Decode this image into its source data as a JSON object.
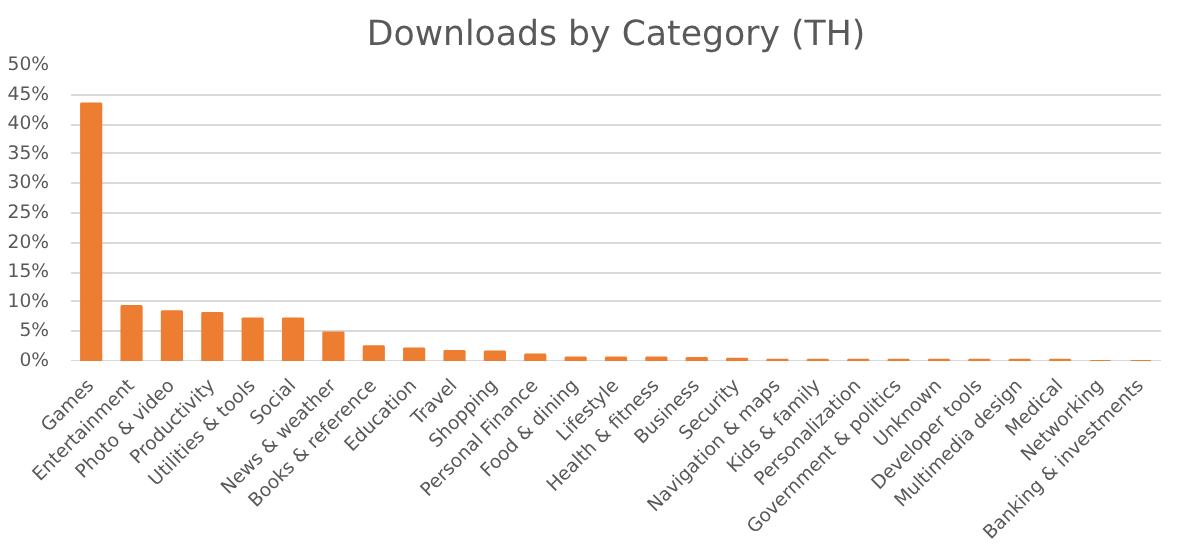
{
  "chart_data": {
    "type": "bar",
    "title": "Downloads by Category (TH)",
    "categories": [
      "Games",
      "Entertainment",
      "Photo & video",
      "Productivity",
      "Utilities & tools",
      "Social",
      "News & weather",
      "Books & reference",
      "Education",
      "Travel",
      "Shopping",
      "Personal Finance",
      "Food & dining",
      "Lifestyle",
      "Health & fitness",
      "Business",
      "Security",
      "Navigation & maps",
      "Kids & family",
      "Personalization",
      "Government & politics",
      "Unknown",
      "Developer tools",
      "Multimedia design",
      "Medical",
      "Networking",
      "Banking & investments"
    ],
    "values": [
      43.5,
      9.3,
      8.4,
      8.1,
      7.2,
      7.2,
      4.8,
      2.5,
      2.1,
      1.7,
      1.6,
      1.1,
      0.6,
      0.6,
      0.6,
      0.5,
      0.4,
      0.2,
      0.2,
      0.2,
      0.2,
      0.2,
      0.2,
      0.2,
      0.2,
      0,
      0
    ],
    "color": "#ed7d31",
    "ylim": [
      0,
      50
    ],
    "yticks": [
      {
        "value": 0,
        "label": "0%"
      },
      {
        "value": 5,
        "label": "5%"
      },
      {
        "value": 10,
        "label": "10%"
      },
      {
        "value": 15,
        "label": "15%"
      },
      {
        "value": 20,
        "label": "20%"
      },
      {
        "value": 25,
        "label": "25%"
      },
      {
        "value": 30,
        "label": "30%"
      },
      {
        "value": 35,
        "label": "35%"
      },
      {
        "value": 40,
        "label": "40%"
      },
      {
        "value": 45,
        "label": "45%"
      },
      {
        "value": 50,
        "label": "50%"
      }
    ],
    "grid": "y"
  }
}
